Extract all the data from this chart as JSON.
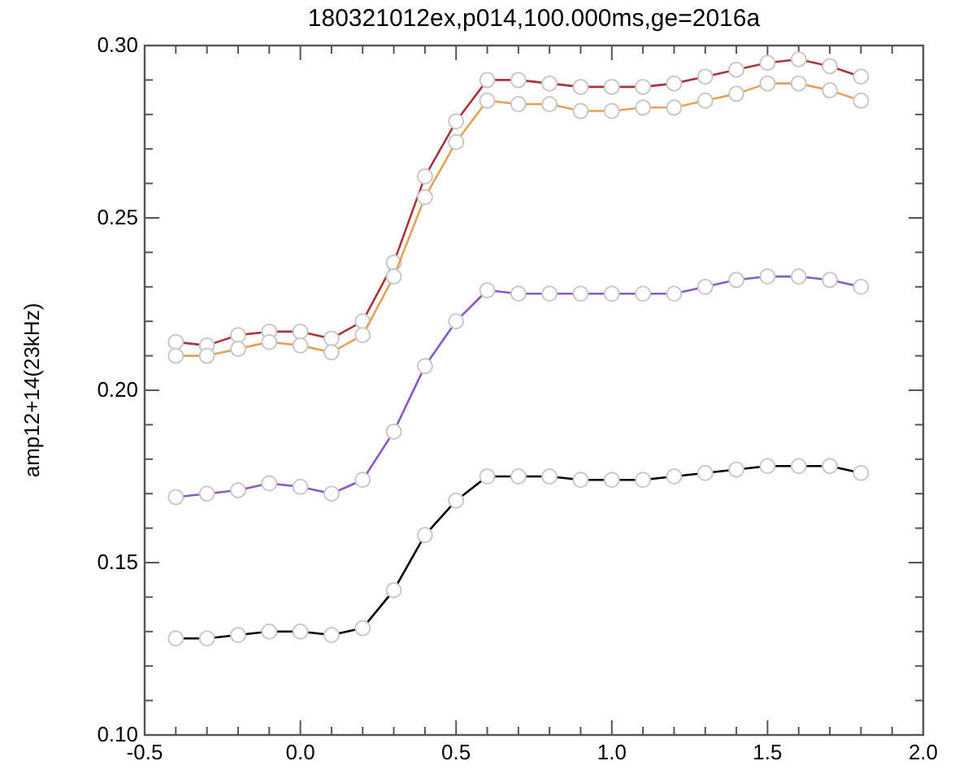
{
  "chart_data": {
    "type": "line",
    "title": "180321012ex,p014,100.000ms,ge=2016a",
    "ylabel": "amp12+14(23kHz)",
    "x": [
      -0.4,
      -0.3,
      -0.2,
      -0.1,
      0.0,
      0.1,
      0.2,
      0.3,
      0.4,
      0.5,
      0.6,
      0.7,
      0.8,
      0.9,
      1.0,
      1.1,
      1.2,
      1.3,
      1.4,
      1.5,
      1.6,
      1.7,
      1.8
    ],
    "series": [
      {
        "color": "#a8343c",
        "values": [
          0.214,
          0.213,
          0.216,
          0.217,
          0.217,
          0.215,
          0.22,
          0.237,
          0.262,
          0.278,
          0.29,
          0.29,
          0.289,
          0.288,
          0.288,
          0.288,
          0.289,
          0.291,
          0.293,
          0.295,
          0.296,
          0.294,
          0.291
        ]
      },
      {
        "color": "#e0a458",
        "values": [
          0.21,
          0.21,
          0.212,
          0.214,
          0.213,
          0.211,
          0.216,
          0.233,
          0.256,
          0.272,
          0.284,
          0.283,
          0.283,
          0.281,
          0.281,
          0.282,
          0.282,
          0.284,
          0.286,
          0.289,
          0.289,
          0.287,
          0.284
        ]
      },
      {
        "color": "#8a58c4",
        "values": [
          0.169,
          0.17,
          0.171,
          0.173,
          0.172,
          0.17,
          0.174,
          0.188,
          0.207,
          0.22,
          0.229,
          0.228,
          0.228,
          0.228,
          0.228,
          0.228,
          0.228,
          0.23,
          0.232,
          0.233,
          0.233,
          0.232,
          0.23
        ]
      },
      {
        "color": "#000000",
        "values": [
          0.128,
          0.128,
          0.129,
          0.13,
          0.13,
          0.129,
          0.131,
          0.142,
          0.158,
          0.168,
          0.175,
          0.175,
          0.175,
          0.174,
          0.174,
          0.174,
          0.175,
          0.176,
          0.177,
          0.178,
          0.178,
          0.178,
          0.176
        ]
      }
    ],
    "marker": "circle",
    "line_style": "solid",
    "grid": false,
    "xlim": [
      -0.5,
      2.0
    ],
    "ylim": [
      0.1,
      0.3
    ],
    "xticks": [
      {
        "value": -0.5,
        "label": "-0.5"
      },
      {
        "value": -0.4,
        "label": null
      },
      {
        "value": -0.3,
        "label": null
      },
      {
        "value": -0.2,
        "label": null
      },
      {
        "value": -0.1,
        "label": null
      },
      {
        "value": 0.0,
        "label": "0.0"
      },
      {
        "value": 0.1,
        "label": null
      },
      {
        "value": 0.2,
        "label": null
      },
      {
        "value": 0.3,
        "label": null
      },
      {
        "value": 0.4,
        "label": null
      },
      {
        "value": 0.5,
        "label": "0.5"
      },
      {
        "value": 0.6,
        "label": null
      },
      {
        "value": 0.7,
        "label": null
      },
      {
        "value": 0.8,
        "label": null
      },
      {
        "value": 0.9,
        "label": null
      },
      {
        "value": 1.0,
        "label": "1.0"
      },
      {
        "value": 1.1,
        "label": null
      },
      {
        "value": 1.2,
        "label": null
      },
      {
        "value": 1.3,
        "label": null
      },
      {
        "value": 1.4,
        "label": null
      },
      {
        "value": 1.5,
        "label": "1.5"
      },
      {
        "value": 1.6,
        "label": null
      },
      {
        "value": 1.7,
        "label": null
      },
      {
        "value": 1.8,
        "label": null
      },
      {
        "value": 1.9,
        "label": null
      },
      {
        "value": 2.0,
        "label": "2.0"
      }
    ],
    "yticks": [
      {
        "value": 0.1,
        "label": "0.10"
      },
      {
        "value": 0.11,
        "label": null
      },
      {
        "value": 0.12,
        "label": null
      },
      {
        "value": 0.13,
        "label": null
      },
      {
        "value": 0.14,
        "label": null
      },
      {
        "value": 0.15,
        "label": "0.15"
      },
      {
        "value": 0.16,
        "label": null
      },
      {
        "value": 0.17,
        "label": null
      },
      {
        "value": 0.18,
        "label": null
      },
      {
        "value": 0.19,
        "label": null
      },
      {
        "value": 0.2,
        "label": "0.20"
      },
      {
        "value": 0.21,
        "label": null
      },
      {
        "value": 0.22,
        "label": null
      },
      {
        "value": 0.23,
        "label": null
      },
      {
        "value": 0.24,
        "label": null
      },
      {
        "value": 0.25,
        "label": "0.25"
      },
      {
        "value": 0.26,
        "label": null
      },
      {
        "value": 0.27,
        "label": null
      },
      {
        "value": 0.28,
        "label": null
      },
      {
        "value": 0.29,
        "label": null
      },
      {
        "value": 0.3,
        "label": "0.30"
      }
    ]
  }
}
